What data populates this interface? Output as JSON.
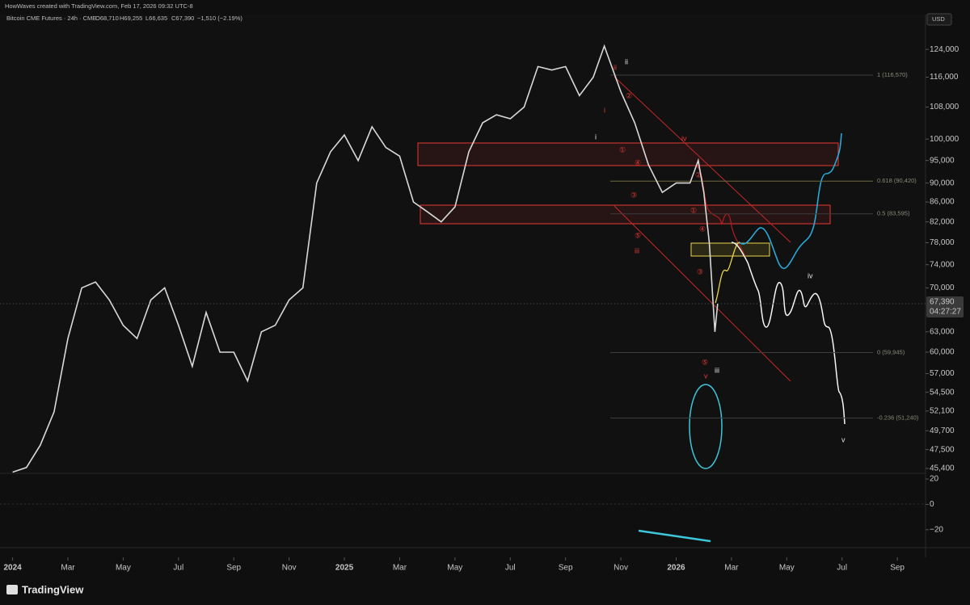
{
  "header": "HowWaves created with TradingView.com, Feb 17, 2026 09:32 UTC-8",
  "symbol_line": {
    "name": "Bitcoin CME Futures · 24h · CME",
    "open": "O68,710",
    "high": "H69,255",
    "low": "L66,635",
    "close": "C67,390",
    "change": "−1,510 (−2.19%)"
  },
  "currency": "USD",
  "chart_data": {
    "type": "line",
    "x": [
      0,
      0.5,
      1,
      1.5,
      2,
      2.5,
      3,
      3.5,
      4,
      4.5,
      5,
      5.5,
      6,
      6.5,
      7,
      7.5,
      8,
      8.5,
      9,
      9.5,
      10,
      10.5,
      11,
      11.5,
      12,
      12.5,
      13,
      13.5,
      14,
      14.5,
      15,
      15.5,
      16,
      16.5,
      17,
      17.5,
      18,
      18.5,
      19,
      19.5,
      20,
      20.5,
      21,
      21.4,
      22,
      22.5,
      23,
      23.5,
      24,
      24.5,
      24.8,
      25,
      25.2,
      25.4,
      25.5
    ],
    "values": [
      45000,
      45500,
      48000,
      52000,
      62000,
      70000,
      71000,
      68000,
      64000,
      62000,
      68000,
      70000,
      64000,
      58000,
      66000,
      60000,
      60000,
      56000,
      63000,
      64000,
      68000,
      70000,
      90000,
      97000,
      101000,
      95000,
      103000,
      98000,
      96000,
      86000,
      84000,
      82000,
      85000,
      97000,
      104000,
      106000,
      105000,
      108000,
      119000,
      118000,
      119000,
      111000,
      116000,
      125000,
      112000,
      104000,
      94000,
      88000,
      90000,
      90000,
      95000,
      88000,
      78000,
      63000,
      67390
    ],
    "color": "#d9d9d9",
    "xlim": [
      -0.456,
      33.02
    ],
    "xticks": [
      {
        "value": 0,
        "label": "2024"
      },
      {
        "value": 2,
        "label": "Mar"
      },
      {
        "value": 4,
        "label": "May"
      },
      {
        "value": 6,
        "label": "Jul"
      },
      {
        "value": 8,
        "label": "Sep"
      },
      {
        "value": 10,
        "label": "Nov"
      },
      {
        "value": 12,
        "label": "2025"
      },
      {
        "value": 14,
        "label": "Mar"
      },
      {
        "value": 16,
        "label": "May"
      },
      {
        "value": 18,
        "label": "Jul"
      },
      {
        "value": 20,
        "label": "Sep"
      },
      {
        "value": 22,
        "label": "Nov"
      },
      {
        "value": 24,
        "label": "2026"
      },
      {
        "value": 26,
        "label": "Mar"
      },
      {
        "value": 28,
        "label": "May"
      },
      {
        "value": 30,
        "label": "Jul"
      },
      {
        "value": 32,
        "label": "Sep"
      }
    ],
    "ylim": [
      44960,
      134800
    ],
    "log_scale": true,
    "yticks": [
      {
        "value": 124000,
        "label": "124,000"
      },
      {
        "value": 116000,
        "label": "116,000"
      },
      {
        "value": 108000,
        "label": "108,000"
      },
      {
        "value": 100000,
        "label": "100,000"
      },
      {
        "value": 95000,
        "label": "95,000"
      },
      {
        "value": 90000,
        "label": "90,000"
      },
      {
        "value": 86000,
        "label": "86,000"
      },
      {
        "value": 82000,
        "label": "82,000"
      },
      {
        "value": 78000,
        "label": "78,000"
      },
      {
        "value": 74000,
        "label": "74,000"
      },
      {
        "value": 70000,
        "label": "70,000"
      },
      {
        "value": 63000,
        "label": "63,000"
      },
      {
        "value": 60000,
        "label": "60,000"
      },
      {
        "value": 57000,
        "label": "57,000"
      },
      {
        "value": 54500,
        "label": "54,500"
      },
      {
        "value": 52100,
        "label": "52,100"
      },
      {
        "value": 49700,
        "label": "49,700"
      },
      {
        "value": 47500,
        "label": "47,500"
      },
      {
        "value": 45400,
        "label": "45,400"
      }
    ],
    "last_price": {
      "value": 67390,
      "label": "67,390"
    },
    "countdown": "04:27:27",
    "fib_levels": [
      {
        "value": 116570,
        "label": "1 (116,570)"
      },
      {
        "value": 90420,
        "label": "0.618 (90,420)"
      },
      {
        "value": 83595,
        "label": "0.5 (83,595)"
      },
      {
        "value": 59945,
        "label": "0 (59,945)"
      },
      {
        "value": 51240,
        "label": "-0.236 (51,240)"
      }
    ],
    "oscillator": {
      "ylim": [
        -33.5,
        23.2
      ],
      "yticks": [
        20,
        0,
        {
          "value": -20,
          "label": "−20"
        }
      ]
    }
  },
  "annotations": [
    "ii",
    "ii",
    "i",
    "i",
    "iv",
    "iii",
    "iv",
    "iii",
    "v",
    "v",
    "①",
    "②",
    "③",
    "④",
    "⑤",
    "①",
    "②",
    "③",
    "④",
    "⑤"
  ],
  "footer": "TradingView"
}
